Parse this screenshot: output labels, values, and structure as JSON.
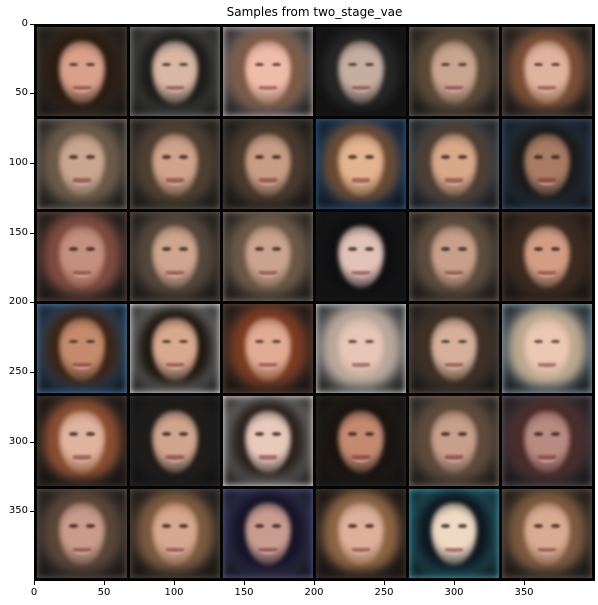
{
  "figure": {
    "title": "Samples from two_stage_vae",
    "x_tick_labels": [
      "0",
      "50",
      "100",
      "150",
      "200",
      "250",
      "300",
      "350"
    ],
    "y_tick_labels": [
      "0",
      "50",
      "100",
      "150",
      "200",
      "250",
      "300",
      "350"
    ]
  },
  "grid": {
    "rows": 6,
    "cols": 6,
    "background_color": "#000000",
    "tiles": [
      {
        "bg": "#5a4a3b",
        "hair": "#2a1b12",
        "skin": "#d9a08a"
      },
      {
        "bg": "#8c8f8a",
        "hair": "#1e1c1a",
        "skin": "#d8b7a3"
      },
      {
        "bg": "#d8c7c9",
        "hair": "#7b5a45",
        "skin": "#f0bcaa"
      },
      {
        "bg": "#181818",
        "hair": "#262626",
        "skin": "#c5aea0"
      },
      {
        "bg": "#7a6a59",
        "hair": "#5a4937",
        "skin": "#c9a48f"
      },
      {
        "bg": "#6a5a4c",
        "hair": "#7a4e35",
        "skin": "#e0b39d"
      },
      {
        "bg": "#8f8575",
        "hair": "#6c5a48",
        "skin": "#c9a690"
      },
      {
        "bg": "#6f6455",
        "hair": "#4f3f31",
        "skin": "#d0a38a"
      },
      {
        "bg": "#5c5044",
        "hair": "#4a3a2d",
        "skin": "#c79d83"
      },
      {
        "bg": "#2a65a0",
        "hair": "#6b4b33",
        "skin": "#e3b48f"
      },
      {
        "bg": "#6f7c86",
        "hair": "#4d3e33",
        "skin": "#d8a889"
      },
      {
        "bg": "#3d5b7b",
        "hair": "#1b1b1b",
        "skin": "#a87b62"
      },
      {
        "bg": "#6a4e44",
        "hair": "#7f4b3f",
        "skin": "#c58f7d"
      },
      {
        "bg": "#6c5f52",
        "hair": "#54463a",
        "skin": "#cfa58d"
      },
      {
        "bg": "#8c7d6a",
        "hair": "#6b5846",
        "skin": "#caa38d"
      },
      {
        "bg": "#1b1b1d",
        "hair": "#0f0f11",
        "skin": "#e2c2b8"
      },
      {
        "bg": "#7a6b5b",
        "hair": "#5d4c3d",
        "skin": "#c8a08a"
      },
      {
        "bg": "#5b4333",
        "hair": "#3a2a1f",
        "skin": "#d39d84"
      },
      {
        "bg": "#4f88c0",
        "hair": "#3a2518",
        "skin": "#c48a6b"
      },
      {
        "bg": "#f1f1f1",
        "hair": "#1f1812",
        "skin": "#d9a98e"
      },
      {
        "bg": "#6b4a39",
        "hair": "#7a3b22",
        "skin": "#e1ab94"
      },
      {
        "bg": "#e6e7e8",
        "hair": "#b9a89a",
        "skin": "#e7c6b7"
      },
      {
        "bg": "#6a5c50",
        "hair": "#3d2f24",
        "skin": "#d6b09b"
      },
      {
        "bg": "#9bb6c6",
        "hair": "#bda98f",
        "skin": "#ebc8b3"
      },
      {
        "bg": "#4a3a30",
        "hair": "#8a4e31",
        "skin": "#e0b39e"
      },
      {
        "bg": "#2d2d2f",
        "hair": "#1e1b19",
        "skin": "#cfa58d"
      },
      {
        "bg": "#f4f1ee",
        "hair": "#2a221e",
        "skin": "#e8c9bb"
      },
      {
        "bg": "#2e2824",
        "hair": "#1a1410",
        "skin": "#c38a6f"
      },
      {
        "bg": "#8d7b69",
        "hair": "#5e4a3a",
        "skin": "#c79f8b"
      },
      {
        "bg": "#6f5d6a",
        "hair": "#4a2c2a",
        "skin": "#b78a82"
      },
      {
        "bg": "#6a5a4f",
        "hair": "#5a4639",
        "skin": "#c89b8a"
      },
      {
        "bg": "#5f5041",
        "hair": "#7b5a3f",
        "skin": "#d6a88f"
      },
      {
        "bg": "#5a5ea0",
        "hair": "#161327",
        "skin": "#c89c8f"
      },
      {
        "bg": "#4d3a2e",
        "hair": "#8c6544",
        "skin": "#ddb09a"
      },
      {
        "bg": "#38b0c8",
        "hair": "#0e1720",
        "skin": "#f0d9c3"
      },
      {
        "bg": "#6f5d4b",
        "hair": "#7c5a3f",
        "skin": "#d9ab92"
      }
    ]
  }
}
